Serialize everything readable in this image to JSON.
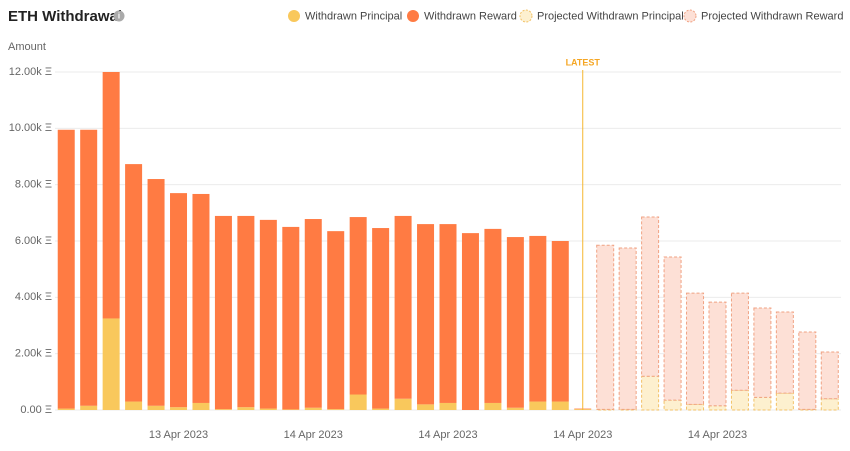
{
  "chart_data": {
    "type": "bar",
    "stacked": true,
    "title": "ETH Withdrawal",
    "y_label": "Amount",
    "annotation": "LATEST",
    "categories": [
      null,
      null,
      null,
      null,
      null,
      "13 Apr 2023",
      null,
      null,
      null,
      null,
      null,
      "14 Apr 2023",
      null,
      null,
      null,
      null,
      null,
      "14 Apr 2023",
      null,
      null,
      null,
      null,
      null,
      "14 Apr 2023",
      null,
      null,
      null,
      null,
      null,
      "14 Apr 2023",
      null,
      null,
      null,
      null,
      null
    ],
    "series": [
      {
        "name": "Withdrawn Principal",
        "color": "#f9c85c",
        "dashed": false,
        "values": [
          50,
          150,
          3250,
          300,
          150,
          100,
          250,
          30,
          100,
          50,
          20,
          80,
          30,
          550,
          50,
          400,
          200,
          250,
          0,
          250,
          80,
          300,
          300,
          30,
          null,
          null,
          null,
          null,
          null,
          null,
          null,
          null,
          null,
          null,
          null
        ]
      },
      {
        "name": "Withdrawn Reward",
        "color": "#ff7b43",
        "dashed": false,
        "values": [
          9900,
          9800,
          8750,
          8430,
          8050,
          7600,
          7420,
          6860,
          6790,
          6700,
          6480,
          6700,
          6320,
          6300,
          6410,
          6490,
          6400,
          6350,
          6280,
          6180,
          6060,
          5880,
          5700,
          20,
          null,
          null,
          null,
          null,
          null,
          null,
          null,
          null,
          null,
          null,
          null
        ]
      },
      {
        "name": "Projected Withdrawn Principal",
        "color": "#fdf0cf",
        "stroke": "#f2c268",
        "dashed": true,
        "values": [
          null,
          null,
          null,
          null,
          null,
          null,
          null,
          null,
          null,
          null,
          null,
          null,
          null,
          null,
          null,
          null,
          null,
          null,
          null,
          null,
          null,
          null,
          null,
          null,
          20,
          20,
          1200,
          350,
          200,
          150,
          700,
          450,
          600,
          20,
          400
        ]
      },
      {
        "name": "Projected Withdrawn Reward",
        "color": "#fde0d6",
        "stroke": "#f0a283",
        "dashed": true,
        "values": [
          null,
          null,
          null,
          null,
          null,
          null,
          null,
          null,
          null,
          null,
          null,
          null,
          null,
          null,
          null,
          null,
          null,
          null,
          null,
          null,
          null,
          null,
          null,
          null,
          5830,
          5730,
          5650,
          5080,
          3950,
          3680,
          3450,
          3170,
          2880,
          2750,
          1660
        ]
      }
    ],
    "ylim": [
      0,
      12000
    ],
    "yticks": [
      {
        "value": 0,
        "label": "0.00 Ξ"
      },
      {
        "value": 2000,
        "label": "2.00k Ξ"
      },
      {
        "value": 4000,
        "label": "4.00k Ξ"
      },
      {
        "value": 6000,
        "label": "6.00k Ξ"
      },
      {
        "value": 8000,
        "label": "8.00k Ξ"
      },
      {
        "value": 10000,
        "label": "10.00k Ξ"
      },
      {
        "value": 12000,
        "label": "12.00k Ξ"
      }
    ],
    "grid": true
  }
}
